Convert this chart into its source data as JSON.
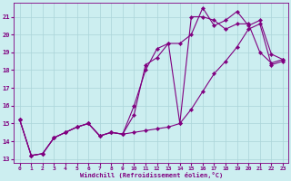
{
  "xlabel": "Windchill (Refroidissement éolien,°C)",
  "bg_color": "#cceef0",
  "line_color": "#800080",
  "grid_color": "#aad4d8",
  "xlim": [
    -0.5,
    23.5
  ],
  "ylim": [
    12.8,
    21.8
  ],
  "yticks": [
    13,
    14,
    15,
    16,
    17,
    18,
    19,
    20,
    21
  ],
  "xticks": [
    0,
    1,
    2,
    3,
    4,
    5,
    6,
    7,
    8,
    9,
    10,
    11,
    12,
    13,
    14,
    15,
    16,
    17,
    18,
    19,
    20,
    21,
    22,
    23
  ],
  "series": [
    {
      "x": [
        0,
        1,
        2,
        3,
        4,
        5,
        6,
        7,
        8,
        9,
        10,
        11,
        12,
        13,
        14,
        15,
        16,
        17,
        18,
        19,
        20,
        21,
        22,
        23
      ],
      "y": [
        15.2,
        13.2,
        13.3,
        14.2,
        14.5,
        14.8,
        15.0,
        14.3,
        14.5,
        14.4,
        15.5,
        18.3,
        18.7,
        19.5,
        15.0,
        21.0,
        21.0,
        20.8,
        20.3,
        20.6,
        20.6,
        19.0,
        18.4,
        18.6
      ]
    },
    {
      "x": [
        0,
        1,
        2,
        3,
        4,
        5,
        6,
        7,
        8,
        9,
        10,
        11,
        12,
        13,
        14,
        15,
        16,
        17,
        18,
        19,
        20,
        21,
        22,
        23
      ],
      "y": [
        15.2,
        13.2,
        13.3,
        14.2,
        14.5,
        14.8,
        15.0,
        14.3,
        14.5,
        14.4,
        16.0,
        18.0,
        19.2,
        19.5,
        19.5,
        20.0,
        21.5,
        20.5,
        20.8,
        21.3,
        20.5,
        20.8,
        18.9,
        18.6
      ]
    },
    {
      "x": [
        0,
        1,
        2,
        3,
        4,
        5,
        6,
        7,
        8,
        9,
        10,
        11,
        12,
        13,
        14,
        15,
        16,
        17,
        18,
        19,
        20,
        21,
        22,
        23
      ],
      "y": [
        15.2,
        13.2,
        13.3,
        14.2,
        14.5,
        14.8,
        15.0,
        14.3,
        14.5,
        14.4,
        14.5,
        14.6,
        14.7,
        14.8,
        15.0,
        15.8,
        16.8,
        17.8,
        18.5,
        19.3,
        20.3,
        20.6,
        18.3,
        18.5
      ]
    }
  ]
}
